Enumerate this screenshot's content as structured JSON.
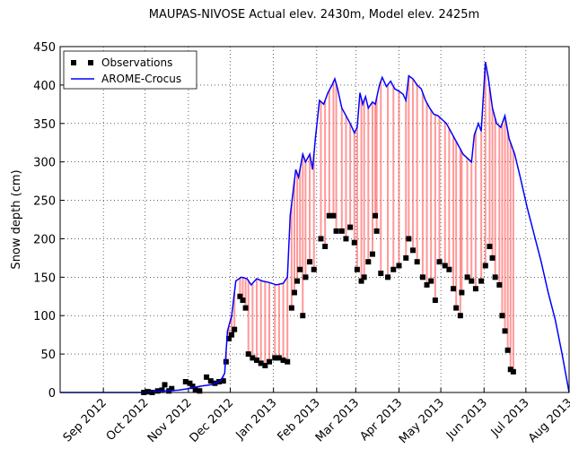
{
  "chart_data": {
    "type": "line",
    "title": "MAUPAS-NIVOSE  Actual elev. 2430m, Model elev. 2425m",
    "y_label": "Snow depth (cm)",
    "xlim": [
      0,
      365
    ],
    "xticks": [
      {
        "value": 31,
        "label": "Sep 2012"
      },
      {
        "value": 61,
        "label": "Oct 2012"
      },
      {
        "value": 92,
        "label": "Nov 2012"
      },
      {
        "value": 122,
        "label": "Dec 2012"
      },
      {
        "value": 153,
        "label": "Jan 2013"
      },
      {
        "value": 184,
        "label": "Feb 2013"
      },
      {
        "value": 212,
        "label": "Mar 2013"
      },
      {
        "value": 243,
        "label": "Apr 2013"
      },
      {
        "value": 273,
        "label": "May 2013"
      },
      {
        "value": 304,
        "label": "Jun 2013"
      },
      {
        "value": 334,
        "label": "Jul 2013"
      },
      {
        "value": 365,
        "label": "Aug 2013"
      }
    ],
    "ylim": [
      0,
      450
    ],
    "yticks": [
      0,
      50,
      100,
      150,
      200,
      250,
      300,
      350,
      400,
      450
    ],
    "grid": true,
    "legend": "upper left",
    "difference_color": "#ff4444",
    "series": [
      {
        "name": "Observations",
        "kind": "scatter",
        "color": "#000000",
        "x": [
          60,
          63,
          66,
          70,
          73,
          75,
          78,
          80,
          90,
          93,
          95,
          97,
          100,
          105,
          108,
          111,
          114,
          117,
          119,
          121,
          123,
          125,
          129,
          131,
          133,
          135,
          138,
          141,
          144,
          147,
          150,
          154,
          157,
          160,
          163,
          166,
          168,
          170,
          172,
          174,
          176,
          179,
          182,
          187,
          190,
          193,
          196,
          198,
          202,
          205,
          208,
          211,
          213,
          216,
          218,
          221,
          224,
          226,
          227,
          230,
          235,
          239,
          243,
          248,
          250,
          253,
          256,
          260,
          263,
          266,
          269,
          272,
          276,
          279,
          282,
          284,
          287,
          288,
          292,
          295,
          298,
          302,
          305,
          308,
          310,
          312,
          315,
          317,
          319,
          321,
          323,
          325
        ],
        "values": [
          0,
          1,
          0,
          2,
          3,
          10,
          2,
          5,
          14,
          12,
          8,
          3,
          2,
          20,
          15,
          12,
          14,
          15,
          40,
          70,
          75,
          82,
          125,
          120,
          110,
          50,
          45,
          42,
          38,
          35,
          40,
          45,
          45,
          42,
          40,
          110,
          130,
          145,
          160,
          100,
          150,
          170,
          160,
          200,
          190,
          230,
          230,
          210,
          210,
          200,
          215,
          195,
          160,
          145,
          150,
          170,
          180,
          230,
          210,
          155,
          150,
          160,
          165,
          175,
          200,
          185,
          170,
          150,
          140,
          145,
          120,
          170,
          165,
          160,
          135,
          110,
          100,
          130,
          150,
          145,
          135,
          145,
          165,
          190,
          175,
          150,
          140,
          100,
          80,
          55,
          30,
          27
        ]
      },
      {
        "name": "AROME-Crocus",
        "kind": "line",
        "color": "#0000ff",
        "x": [
          0,
          60,
          75,
          85,
          92,
          100,
          108,
          115,
          118,
          120,
          123,
          126,
          130,
          134,
          137,
          141,
          145,
          150,
          155,
          160,
          163,
          165,
          167,
          169,
          171,
          174,
          176,
          179,
          181,
          183,
          186,
          189,
          192,
          195,
          197,
          199,
          202,
          205,
          208,
          211,
          213,
          215,
          217,
          219,
          221,
          224,
          226,
          229,
          231,
          234,
          237,
          240,
          243,
          246,
          248,
          250,
          253,
          256,
          259,
          262,
          265,
          268,
          271,
          274,
          277,
          280,
          283,
          286,
          289,
          292,
          295,
          297,
          300,
          302,
          305,
          307,
          310,
          313,
          316,
          319,
          322,
          326,
          330,
          335,
          340,
          345,
          350,
          355,
          360,
          365
        ],
        "values": [
          0,
          0,
          2,
          3,
          5,
          8,
          10,
          15,
          25,
          80,
          100,
          145,
          150,
          148,
          140,
          148,
          145,
          143,
          140,
          142,
          150,
          230,
          260,
          290,
          280,
          310,
          300,
          310,
          290,
          330,
          380,
          375,
          390,
          400,
          408,
          395,
          370,
          360,
          350,
          338,
          345,
          390,
          375,
          385,
          370,
          378,
          375,
          400,
          410,
          398,
          405,
          395,
          392,
          388,
          380,
          412,
          408,
          400,
          395,
          380,
          370,
          362,
          360,
          355,
          350,
          340,
          330,
          320,
          310,
          305,
          300,
          335,
          350,
          340,
          430,
          410,
          370,
          350,
          345,
          360,
          330,
          310,
          280,
          240,
          205,
          170,
          130,
          95,
          50,
          0
        ]
      }
    ]
  }
}
